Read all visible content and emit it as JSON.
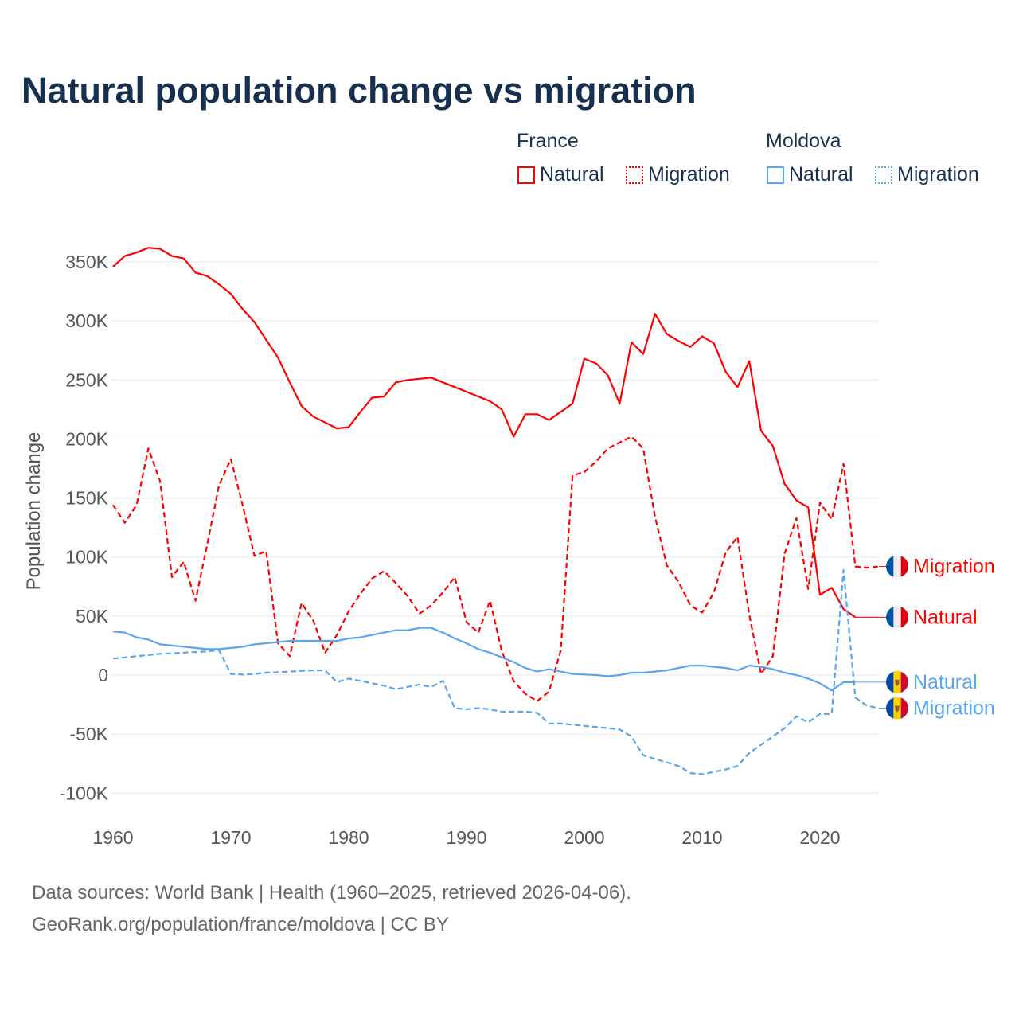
{
  "title": "Natural population change vs migration",
  "legend": {
    "groups": [
      {
        "name": "France",
        "items": [
          {
            "label": "Natural",
            "style": "solid",
            "color": "#ff0000"
          },
          {
            "label": "Migration",
            "style": "dotted",
            "color": "#ff0000"
          }
        ]
      },
      {
        "name": "Moldova",
        "items": [
          {
            "label": "Natural",
            "style": "solid",
            "color": "#5aa5ef"
          },
          {
            "label": "Migration",
            "style": "dotted",
            "color": "#5aa5ef"
          }
        ]
      }
    ]
  },
  "footer": {
    "line1": "Data sources: World Bank | Health (1960–2025, retrieved 2026-04-06).",
    "line2": "GeoRank.org/population/france/moldova | CC BY"
  },
  "chart_data": {
    "type": "line",
    "title": "Natural population change vs migration",
    "xlabel": "",
    "ylabel": "Population change",
    "xlim": [
      1960,
      2025
    ],
    "ylim": [
      -100000,
      350000
    ],
    "x_ticks": [
      "1960",
      "1970",
      "1980",
      "1990",
      "2000",
      "2010",
      "2020"
    ],
    "y_ticks": [
      {
        "value": 350000,
        "label": "350K"
      },
      {
        "value": 300000,
        "label": "300K"
      },
      {
        "value": 250000,
        "label": "250K"
      },
      {
        "value": 200000,
        "label": "200K"
      },
      {
        "value": 150000,
        "label": "150K"
      },
      {
        "value": 100000,
        "label": "100K"
      },
      {
        "value": 50000,
        "label": "50K"
      },
      {
        "value": 0,
        "label": "0"
      },
      {
        "value": -50000,
        "label": "-50K"
      },
      {
        "value": -100000,
        "label": "-100K"
      }
    ],
    "grid": true,
    "units": "thousands",
    "series": [
      {
        "name": "France Natural",
        "end_label": "Natural",
        "country": "France",
        "color": "#ff0000",
        "dash": false,
        "start": 1960,
        "values": [
          346,
          355,
          358,
          362,
          361,
          355,
          353,
          341,
          338,
          331,
          323,
          310,
          299,
          284,
          269,
          248,
          228,
          219,
          214,
          209,
          210,
          223,
          235,
          236,
          248,
          250,
          251,
          252,
          248,
          244,
          240,
          236,
          232,
          225,
          202,
          221,
          221,
          216,
          223,
          230,
          268,
          264,
          254,
          230,
          282,
          272,
          306,
          289,
          283,
          278,
          287,
          281,
          257,
          244,
          266,
          207,
          194,
          162,
          148,
          142,
          68,
          74,
          56,
          49
        ]
      },
      {
        "name": "France Migration",
        "end_label": "Migration",
        "country": "France",
        "color": "#ff0000",
        "dash": true,
        "start": 1960,
        "values": [
          144,
          129,
          144,
          192,
          164,
          83,
          96,
          63,
          111,
          161,
          183,
          144,
          101,
          105,
          27,
          16,
          61,
          46,
          19,
          34,
          54,
          69,
          82,
          88,
          78,
          67,
          52,
          59,
          70,
          83,
          45,
          36,
          63,
          20,
          -5,
          -16,
          -22,
          -14,
          21,
          169,
          172,
          181,
          192,
          197,
          202,
          192,
          134,
          93,
          79,
          59,
          53,
          70,
          104,
          117,
          51,
          1,
          16,
          103,
          133,
          73,
          146,
          132,
          179,
          92,
          91,
          92
        ]
      },
      {
        "name": "Moldova Natural",
        "end_label": "Natural",
        "country": "Moldova",
        "color": "#5aa5ef",
        "dash": false,
        "start": 1960,
        "values": [
          37,
          36,
          32,
          30,
          26,
          25,
          24,
          23,
          22,
          22,
          23,
          24,
          26,
          27,
          28,
          29,
          29,
          29,
          29,
          29,
          31,
          32,
          34,
          36,
          38,
          38,
          40,
          40,
          36,
          31,
          27,
          22,
          19,
          15,
          11,
          6,
          3,
          5,
          3,
          1,
          0.5,
          0,
          -1,
          0,
          2,
          2,
          3,
          4,
          6,
          8,
          8,
          7,
          6,
          4,
          8,
          7,
          5,
          2,
          0,
          -3,
          -7,
          -13,
          -6,
          -6
        ]
      },
      {
        "name": "Moldova Migration",
        "end_label": "Migration",
        "country": "Moldova",
        "color": "#5aa5ef",
        "dash": true,
        "start": 1960,
        "values": [
          14,
          15,
          16,
          17,
          18,
          18.5,
          19,
          19.5,
          20,
          21,
          1,
          0.5,
          1,
          2,
          2.5,
          3,
          3.5,
          4,
          4,
          -6,
          -3,
          -5,
          -7,
          -9,
          -12,
          -10,
          -8,
          -10,
          -5,
          -28,
          -29,
          -28,
          -29,
          -31,
          -31,
          -31,
          -32,
          -41,
          -41,
          -42,
          -43,
          -44,
          -45,
          -46,
          -52,
          -68,
          -71,
          -74,
          -77,
          -83,
          -84,
          -82,
          -80,
          -77,
          -66,
          -59,
          -52,
          -45,
          -35,
          -40,
          -33,
          -33,
          89,
          -19,
          -26,
          -28
        ]
      }
    ]
  }
}
